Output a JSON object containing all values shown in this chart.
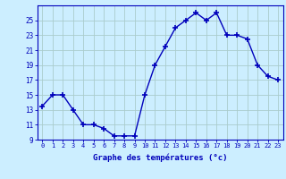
{
  "hours": [
    0,
    1,
    2,
    3,
    4,
    5,
    6,
    7,
    8,
    9,
    10,
    11,
    12,
    13,
    14,
    15,
    16,
    17,
    18,
    19,
    20,
    21,
    22,
    23
  ],
  "temperatures": [
    13.5,
    15.0,
    15.0,
    13.0,
    11.0,
    11.0,
    10.5,
    9.5,
    9.5,
    9.5,
    15.0,
    19.0,
    21.5,
    24.0,
    25.0,
    26.0,
    25.0,
    26.0,
    23.0,
    23.0,
    22.5,
    19.0,
    17.5,
    17.0
  ],
  "xlabel": "Graphe des températures (°c)",
  "ylim": [
    9,
    27
  ],
  "yticks": [
    9,
    11,
    13,
    15,
    17,
    19,
    21,
    23,
    25
  ],
  "xticks": [
    0,
    1,
    2,
    3,
    4,
    5,
    6,
    7,
    8,
    9,
    10,
    11,
    12,
    13,
    14,
    15,
    16,
    17,
    18,
    19,
    20,
    21,
    22,
    23
  ],
  "line_color": "#0000bb",
  "marker": "+",
  "bg_color": "#cceeff",
  "grid_color": "#aacccc",
  "axis_color": "#0000bb",
  "label_color": "#0000bb",
  "tick_color": "#0000bb"
}
